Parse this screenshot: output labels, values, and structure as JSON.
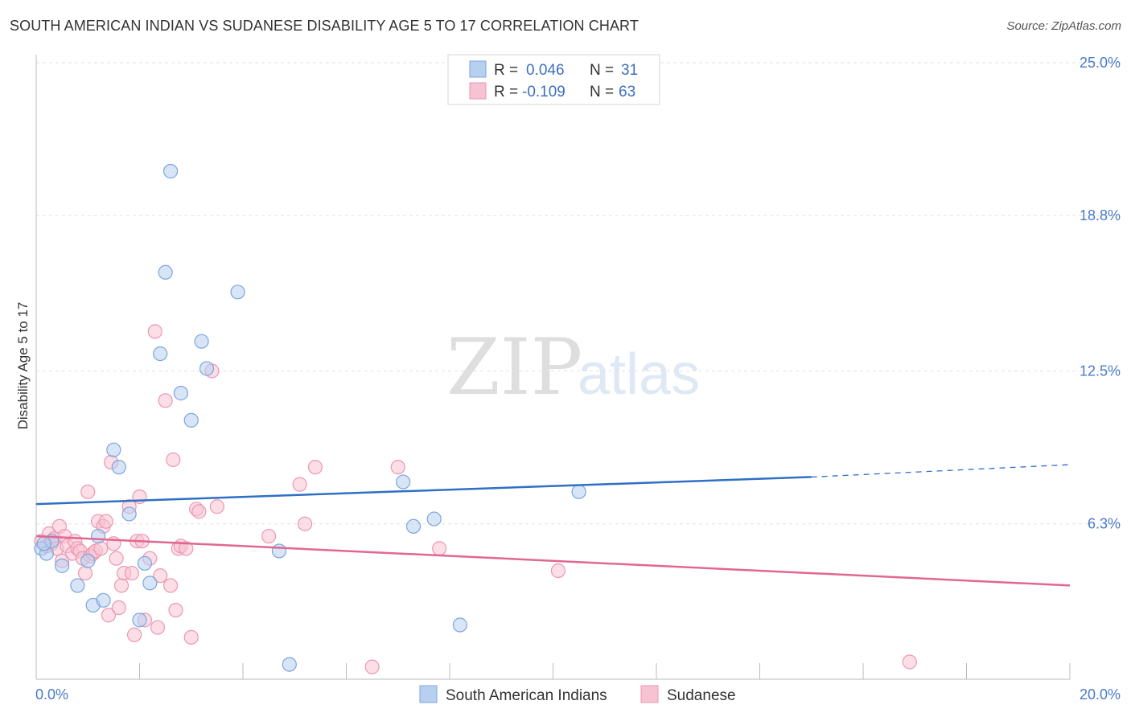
{
  "header": {
    "title": "SOUTH AMERICAN INDIAN VS SUDANESE DISABILITY AGE 5 TO 17 CORRELATION CHART",
    "source": "Source: ZipAtlas.com"
  },
  "watermark": {
    "zip": "ZIP",
    "atlas": "atlas"
  },
  "colors": {
    "blue_fill": "#b8d0f0",
    "blue_stroke": "#7aa6de",
    "blue_line": "#2f6fc6",
    "pink_fill": "#f7c2d2",
    "pink_stroke": "#ec97b2",
    "pink_line": "#e2678f",
    "grid": "#e2e2e2",
    "axis": "#bbbbbb"
  },
  "legend": {
    "rows": [
      {
        "r_label": "R = ",
        "r_value": "0.046",
        "n_label": "N = ",
        "n_value": "31",
        "series": "blue"
      },
      {
        "r_label": "R = ",
        "r_value": "-0.109",
        "n_label": "N = ",
        "n_value": "63",
        "series": "pink"
      }
    ]
  },
  "chart_data": {
    "type": "scatter",
    "title": "SOUTH AMERICAN INDIAN VS SUDANESE DISABILITY AGE 5 TO 17 CORRELATION CHART",
    "xlabel": "",
    "ylabel": "Disability Age 5 to 17",
    "xlim": [
      0,
      20
    ],
    "ylim": [
      0,
      25
    ],
    "x_tick_labels": [
      "0.0%",
      "20.0%"
    ],
    "y_ticks": [
      6.3,
      12.5,
      18.8,
      25.0
    ],
    "y_tick_labels": [
      "6.3%",
      "12.5%",
      "18.8%",
      "25.0%"
    ],
    "series": [
      {
        "name": "South American Indians",
        "color": "blue",
        "R": 0.046,
        "N": 31,
        "trend": {
          "x0": 0,
          "y0": 7.1,
          "x1": 15.0,
          "y1": 8.2,
          "dashed_to_x": 20.0,
          "dashed_to_y": 8.7
        },
        "points": [
          [
            0.1,
            5.3
          ],
          [
            0.2,
            5.1
          ],
          [
            0.3,
            5.6
          ],
          [
            0.5,
            4.6
          ],
          [
            0.8,
            3.8
          ],
          [
            1.0,
            4.8
          ],
          [
            1.1,
            3.0
          ],
          [
            1.3,
            3.2
          ],
          [
            1.5,
            9.3
          ],
          [
            1.6,
            8.6
          ],
          [
            1.8,
            6.7
          ],
          [
            2.0,
            2.4
          ],
          [
            2.1,
            4.7
          ],
          [
            2.2,
            3.9
          ],
          [
            2.4,
            13.2
          ],
          [
            2.5,
            16.5
          ],
          [
            2.6,
            20.6
          ],
          [
            2.8,
            11.6
          ],
          [
            3.0,
            10.5
          ],
          [
            3.2,
            13.7
          ],
          [
            3.3,
            12.6
          ],
          [
            3.9,
            15.7
          ],
          [
            4.7,
            5.2
          ],
          [
            4.9,
            0.6
          ],
          [
            7.1,
            8.0
          ],
          [
            7.3,
            6.2
          ],
          [
            7.7,
            6.5
          ],
          [
            8.2,
            2.2
          ],
          [
            10.5,
            7.6
          ],
          [
            1.2,
            5.8
          ],
          [
            0.15,
            5.5
          ]
        ]
      },
      {
        "name": "Sudanese",
        "color": "pink",
        "R": -0.109,
        "N": 63,
        "trend": {
          "x0": 0,
          "y0": 5.8,
          "x1": 20.0,
          "y1": 3.8
        },
        "points": [
          [
            0.1,
            5.6
          ],
          [
            0.2,
            5.4
          ],
          [
            0.25,
            5.9
          ],
          [
            0.3,
            5.5
          ],
          [
            0.35,
            5.7
          ],
          [
            0.4,
            5.3
          ],
          [
            0.45,
            6.2
          ],
          [
            0.5,
            4.8
          ],
          [
            0.55,
            5.8
          ],
          [
            0.6,
            5.4
          ],
          [
            0.7,
            5.1
          ],
          [
            0.75,
            5.6
          ],
          [
            0.8,
            5.3
          ],
          [
            0.85,
            5.2
          ],
          [
            0.9,
            4.9
          ],
          [
            0.95,
            4.3
          ],
          [
            1.0,
            7.6
          ],
          [
            1.05,
            5.0
          ],
          [
            1.1,
            5.1
          ],
          [
            1.15,
            5.2
          ],
          [
            1.2,
            6.4
          ],
          [
            1.25,
            5.3
          ],
          [
            1.3,
            6.2
          ],
          [
            1.35,
            6.4
          ],
          [
            1.4,
            2.6
          ],
          [
            1.45,
            8.8
          ],
          [
            1.5,
            5.5
          ],
          [
            1.55,
            4.9
          ],
          [
            1.6,
            2.9
          ],
          [
            1.65,
            3.8
          ],
          [
            1.7,
            4.3
          ],
          [
            1.8,
            7.0
          ],
          [
            1.85,
            4.3
          ],
          [
            1.9,
            1.8
          ],
          [
            1.95,
            5.6
          ],
          [
            2.0,
            7.4
          ],
          [
            2.05,
            5.6
          ],
          [
            2.1,
            2.4
          ],
          [
            2.2,
            4.9
          ],
          [
            2.3,
            14.1
          ],
          [
            2.35,
            2.1
          ],
          [
            2.4,
            4.2
          ],
          [
            2.5,
            11.3
          ],
          [
            2.6,
            3.8
          ],
          [
            2.65,
            8.9
          ],
          [
            2.7,
            2.8
          ],
          [
            2.75,
            5.3
          ],
          [
            2.8,
            5.4
          ],
          [
            2.9,
            5.3
          ],
          [
            3.0,
            1.7
          ],
          [
            3.1,
            6.9
          ],
          [
            3.15,
            6.8
          ],
          [
            3.4,
            12.5
          ],
          [
            3.5,
            7.0
          ],
          [
            4.5,
            5.8
          ],
          [
            5.1,
            7.9
          ],
          [
            5.2,
            6.3
          ],
          [
            5.4,
            8.6
          ],
          [
            6.5,
            0.5
          ],
          [
            7.0,
            8.6
          ],
          [
            7.8,
            5.3
          ],
          [
            10.1,
            4.4
          ],
          [
            16.9,
            0.7
          ]
        ]
      }
    ],
    "legend_position": "bottom"
  }
}
